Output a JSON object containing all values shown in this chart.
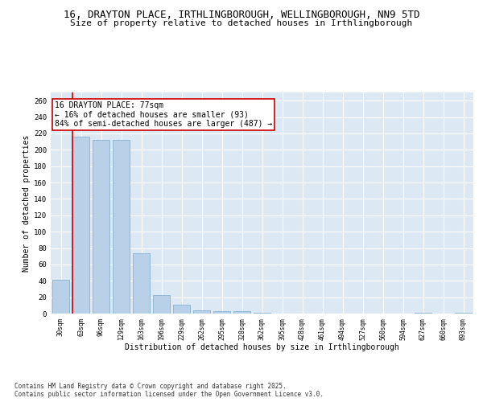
{
  "title_line1": "16, DRAYTON PLACE, IRTHLINGBOROUGH, WELLINGBOROUGH, NN9 5TD",
  "title_line2": "Size of property relative to detached houses in Irthlingborough",
  "xlabel": "Distribution of detached houses by size in Irthlingborough",
  "ylabel": "Number of detached properties",
  "categories": [
    "30sqm",
    "63sqm",
    "96sqm",
    "129sqm",
    "163sqm",
    "196sqm",
    "229sqm",
    "262sqm",
    "295sqm",
    "328sqm",
    "362sqm",
    "395sqm",
    "428sqm",
    "461sqm",
    "494sqm",
    "527sqm",
    "560sqm",
    "594sqm",
    "627sqm",
    "660sqm",
    "693sqm"
  ],
  "values": [
    41,
    216,
    212,
    212,
    74,
    23,
    11,
    4,
    3,
    3,
    1,
    0,
    0,
    0,
    0,
    0,
    0,
    0,
    1,
    0,
    1
  ],
  "bar_color": "#b8d0e8",
  "bar_edge_color": "#7aaac8",
  "vline_color": "#cc0000",
  "annotation_text": "16 DRAYTON PLACE: 77sqm\n← 16% of detached houses are smaller (93)\n84% of semi-detached houses are larger (487) →",
  "annotation_box_color": "#ffffff",
  "annotation_box_edge_color": "#cc0000",
  "ylim": [
    0,
    270
  ],
  "yticks": [
    0,
    20,
    40,
    60,
    80,
    100,
    120,
    140,
    160,
    180,
    200,
    220,
    240,
    260
  ],
  "background_color": "#dce9f5",
  "grid_color": "#ffffff",
  "footer_text": "Contains HM Land Registry data © Crown copyright and database right 2025.\nContains public sector information licensed under the Open Government Licence v3.0."
}
